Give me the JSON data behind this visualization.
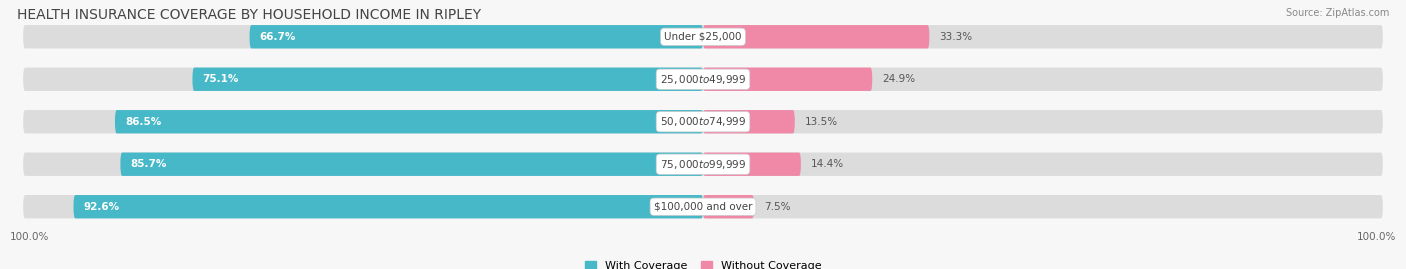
{
  "title": "HEALTH INSURANCE COVERAGE BY HOUSEHOLD INCOME IN RIPLEY",
  "source": "Source: ZipAtlas.com",
  "categories": [
    "Under $25,000",
    "$25,000 to $49,999",
    "$50,000 to $74,999",
    "$75,000 to $99,999",
    "$100,000 and over"
  ],
  "with_coverage": [
    66.7,
    75.1,
    86.5,
    85.7,
    92.6
  ],
  "without_coverage": [
    33.3,
    24.9,
    13.5,
    14.4,
    7.5
  ],
  "color_with": "#46b8c8",
  "color_without": "#f088a8",
  "color_bg_bar": "#dcdcdc",
  "label_left_with": [
    "66.7%",
    "75.1%",
    "86.5%",
    "85.7%",
    "92.6%"
  ],
  "label_right_without": [
    "33.3%",
    "24.9%",
    "13.5%",
    "14.4%",
    "7.5%"
  ],
  "left_axis_label": "100.0%",
  "right_axis_label": "100.0%",
  "legend_with": "With Coverage",
  "legend_without": "Without Coverage",
  "title_fontsize": 10,
  "bar_height": 0.55
}
